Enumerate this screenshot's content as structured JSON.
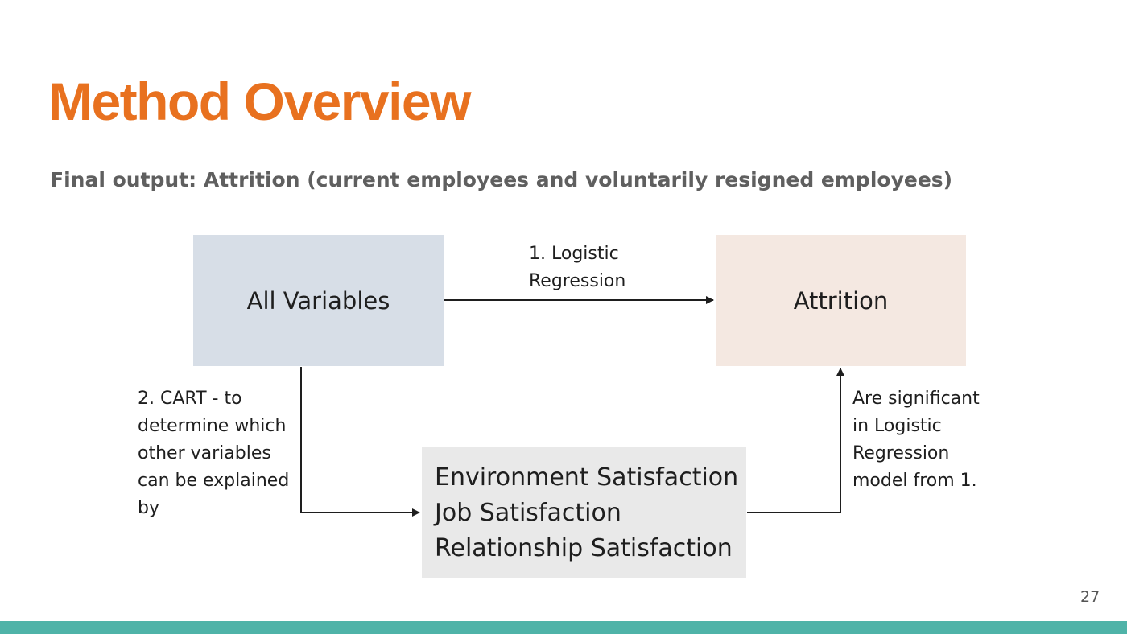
{
  "slide": {
    "title": "Method Overview",
    "subtitle": "Final output: Attrition (current employees and voluntarily resigned employees)",
    "page_number": "27"
  },
  "diagram": {
    "nodes": {
      "all_variables": "All Variables",
      "attrition": "Attrition",
      "satisfaction": {
        "lines": [
          "Environment Satisfaction",
          "Job Satisfaction",
          "Relationship Satisfaction"
        ]
      }
    },
    "edges": {
      "logistic": {
        "lines": [
          "1. Logistic",
          "Regression"
        ]
      },
      "cart": {
        "lines": [
          "2. CART - to",
          "determine which",
          "other variables",
          "can be explained",
          "by"
        ]
      },
      "significant": {
        "lines": [
          "Are significant",
          "in Logistic",
          "Regression",
          "model from 1."
        ]
      }
    }
  },
  "colors": {
    "title": "#e8711f",
    "subtitle": "#5f5f5f",
    "all_variables_fill": "#d7dee7",
    "attrition_fill": "#f4e8e1",
    "satisfaction_fill": "#e9e9e9",
    "footer": "#4fb3a8"
  }
}
